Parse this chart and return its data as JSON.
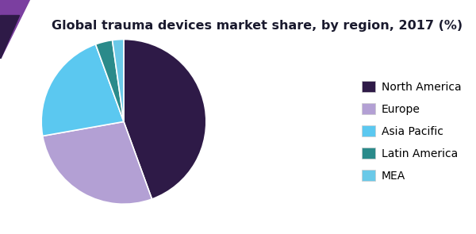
{
  "title": "Global trauma devices market share, by region, 2017 (%)",
  "slices": [
    {
      "label": "North America",
      "value": 40,
      "color": "#2e1a47"
    },
    {
      "label": "Europe",
      "value": 25,
      "color": "#b3a0d4"
    },
    {
      "label": "Asia Pacific",
      "value": 20,
      "color": "#5bc8f0"
    },
    {
      "label": "Latin America",
      "value": 3,
      "color": "#2a8a8a"
    },
    {
      "label": "MEA",
      "value": 2,
      "color": "#6ac9e8"
    }
  ],
  "title_fontsize": 11.5,
  "legend_fontsize": 10,
  "bg_color": "#ffffff",
  "header_purple": "#7b3fa0",
  "header_blue": "#2255cc",
  "corner_dark": "#2e1a47",
  "startangle": 90
}
